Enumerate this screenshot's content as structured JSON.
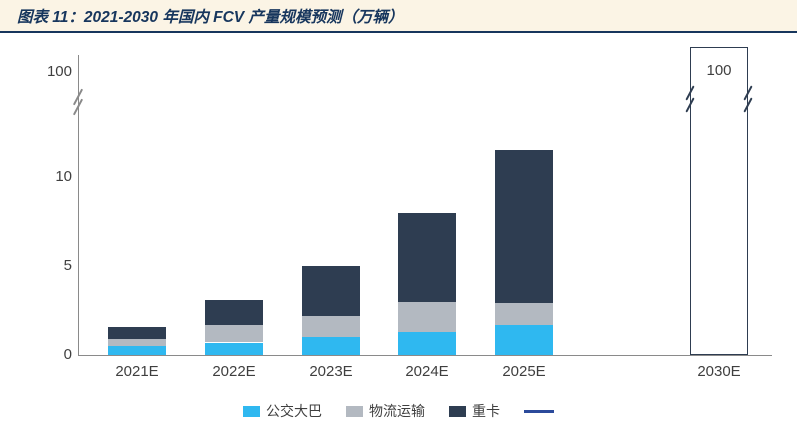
{
  "header": {
    "title": "图表 11：2021-2030 年国内 FCV 产量规模预测（万辆）"
  },
  "chart_data": {
    "type": "bar",
    "stacked": true,
    "title": "2021-2030 年国内 FCV 产量规模预测（万辆）",
    "unit_label": "万辆",
    "categories": [
      "2021E",
      "2022E",
      "2023E",
      "2024E",
      "2025E",
      "2030E"
    ],
    "series": [
      {
        "id": "bus",
        "name": "公交大巴",
        "color": "#2fb8f0",
        "values": [
          0.5,
          0.7,
          1.0,
          1.3,
          1.7,
          null
        ]
      },
      {
        "id": "logistics",
        "name": "物流运输",
        "color": "#b3b9c1",
        "values": [
          0.4,
          1.0,
          1.2,
          1.7,
          1.2,
          null
        ]
      },
      {
        "id": "heavy-truck",
        "name": "重卡",
        "color": "#2e3d51",
        "values": [
          0.7,
          1.4,
          2.8,
          5.0,
          8.6,
          null
        ]
      }
    ],
    "outline_bar": {
      "category": "2030E",
      "value": 100,
      "label": "100",
      "border_color": "#2e3d51"
    },
    "y_axis": {
      "ticks": [
        0,
        5,
        10
      ],
      "break_tick": "100",
      "axis_break": true,
      "ylim_lower_section": [
        0,
        12
      ],
      "upper_section_value": 100
    },
    "grid": "off",
    "legend": {
      "position": "bottom",
      "items": [
        {
          "id": "bus",
          "label": "公交大巴",
          "swatch": "square",
          "color": "#2fb8f0"
        },
        {
          "id": "logistics",
          "label": "物流运输",
          "swatch": "square",
          "color": "#b3b9c1"
        },
        {
          "id": "heavy-truck",
          "label": "重卡",
          "swatch": "square",
          "color": "#2e3d51"
        },
        {
          "id": "line-marker",
          "label": "",
          "swatch": "line",
          "color": "#2b4a9b"
        }
      ]
    }
  }
}
